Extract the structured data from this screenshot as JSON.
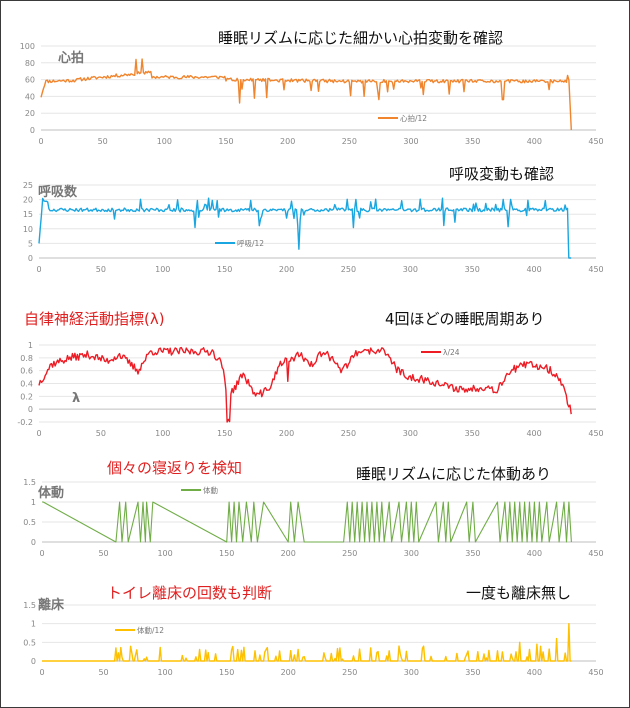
{
  "chart_data": [
    {
      "type": "line",
      "title": "心拍",
      "annotation": "睡眠リズムに応じた細かい心拍変動を確認",
      "series": [
        {
          "name": "心拍/12",
          "color": "#F0852D"
        }
      ],
      "xlim": [
        0,
        450
      ],
      "xticks": [
        0,
        50,
        100,
        150,
        200,
        250,
        300,
        350,
        400,
        450
      ],
      "ylim": [
        0,
        100
      ],
      "yticks": [
        0,
        20,
        40,
        60,
        80,
        100
      ],
      "legend": "bottom-right",
      "shape": {
        "kind": "hr"
      }
    },
    {
      "type": "line",
      "title": "呼吸数",
      "annotation": "呼吸変動も確認",
      "series": [
        {
          "name": "呼吸/12",
          "color": "#1AA6E0"
        }
      ],
      "xlim": [
        0,
        450
      ],
      "xticks": [
        0,
        50,
        100,
        150,
        200,
        250,
        300,
        350,
        400,
        450
      ],
      "ylim": [
        0,
        25
      ],
      "yticks": [
        0,
        5,
        10,
        15,
        20,
        25
      ],
      "legend": "bottom-left",
      "shape": {
        "kind": "resp"
      }
    },
    {
      "type": "line",
      "title": "λ",
      "heading": "自律神経活動指標(λ)",
      "annotation": "4回ほどの睡眠周期あり",
      "series": [
        {
          "name": "λ/24",
          "color": "#EE1C25"
        }
      ],
      "xlim": [
        0,
        450
      ],
      "xticks": [
        0,
        50,
        100,
        150,
        200,
        250,
        300,
        350,
        400,
        450
      ],
      "ylim": [
        -0.2,
        1
      ],
      "yticks": [
        -0.2,
        0,
        0.2,
        0.4,
        0.6,
        0.8,
        1
      ],
      "legend": "top-right",
      "shape": {
        "kind": "lambda"
      }
    },
    {
      "type": "line",
      "title": "体動",
      "heading": "個々の寝返りを検知",
      "annotation": "睡眠リズムに応じた体動あり",
      "series": [
        {
          "name": "体動",
          "color": "#70AD47"
        }
      ],
      "xlim": [
        0,
        450
      ],
      "xticks": [
        0,
        50,
        100,
        150,
        200,
        250,
        300,
        350,
        400,
        450
      ],
      "ylim": [
        0,
        1.5
      ],
      "yticks": [
        0,
        0.5,
        1,
        1.5
      ],
      "legend": "top-center",
      "shape": {
        "kind": "move"
      }
    },
    {
      "type": "line",
      "title": "離床",
      "heading": "トイレ離床の回数も判断",
      "annotation": "一度も離床無し",
      "series": [
        {
          "name": "体動/12",
          "color": "#FFC000"
        }
      ],
      "xlim": [
        0,
        450
      ],
      "xticks": [
        0,
        50,
        100,
        150,
        200,
        250,
        300,
        350,
        400,
        450
      ],
      "ylim": [
        0,
        1.5
      ],
      "yticks": [
        0,
        0.5,
        1,
        1.5
      ],
      "legend": "top-left",
      "shape": {
        "kind": "bed"
      }
    }
  ]
}
